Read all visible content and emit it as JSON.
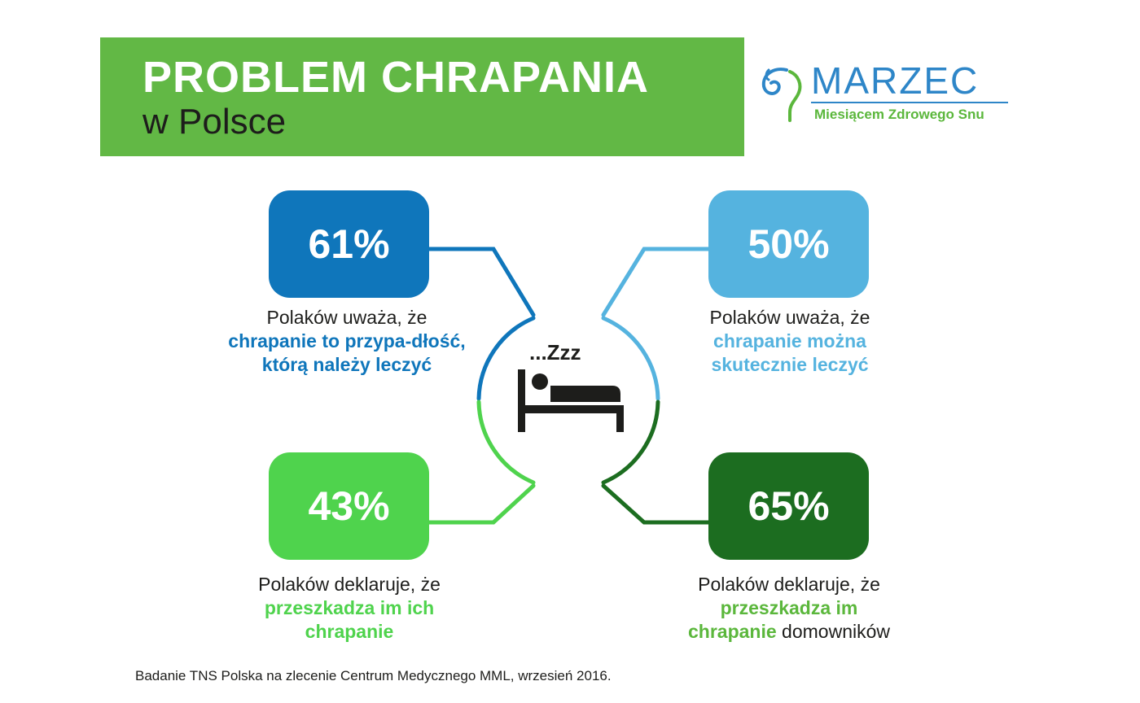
{
  "header": {
    "title": "PROBLEM CHRAPANIA",
    "subtitle": "w Polsce"
  },
  "logo": {
    "wordmark": "MARZEC",
    "tagline": "Miesiącem Zdrowego Snu",
    "icon": "head-swirl-icon"
  },
  "center_icon": {
    "snore_text": "...Zzz",
    "icon": "sleeping-person-bed-icon"
  },
  "stats": [
    {
      "value": "61%",
      "color": "#0f76bb",
      "text_plain": "Polaków uważa, że",
      "text_highlight": "chrapanie to przypa-dłość, którą należy leczyć",
      "text_after": ""
    },
    {
      "value": "50%",
      "color": "#55b3df",
      "text_plain": "Polaków uważa, że",
      "text_highlight": "chrapanie można skutecznie leczyć",
      "text_after": ""
    },
    {
      "value": "43%",
      "color": "#4fd34d",
      "text_plain": "Polaków deklaruje, że",
      "text_highlight": "przeszkadza im ich chrapanie",
      "text_after": ""
    },
    {
      "value": "65%",
      "color": "#1c6d20",
      "text_plain": "Polaków deklaruje, że",
      "text_highlight": "przeszkadza im chrapanie",
      "text_after": "domowników",
      "highlight_color": "#5bb73c"
    }
  ],
  "footer": "Badanie TNS Polska na zlecenie Centrum Medycznego MML, wrzesień 2016."
}
